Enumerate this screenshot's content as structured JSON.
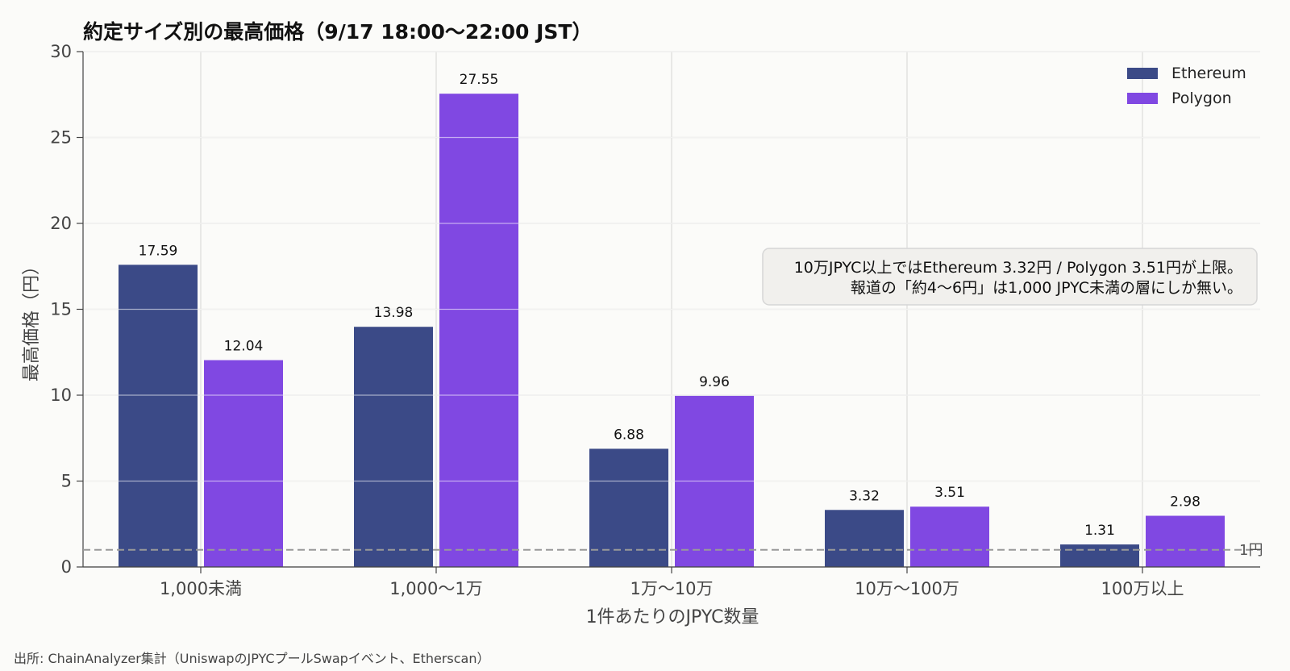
{
  "chart_data": {
    "type": "bar",
    "title": "約定サイズ別の最高価格（9/17 18:00〜22:00 JST）",
    "xlabel": "1件あたりのJPYC数量",
    "ylabel": "最高価格（円）",
    "categories": [
      "1,000未満",
      "1,000〜1万",
      "1万〜10万",
      "10万〜100万",
      "100万以上"
    ],
    "series": [
      {
        "name": "Ethereum",
        "color": "#3b4a87",
        "values": [
          17.59,
          13.98,
          6.88,
          3.32,
          1.31
        ]
      },
      {
        "name": "Polygon",
        "color": "#8048e2",
        "values": [
          12.04,
          27.55,
          9.96,
          3.51,
          2.98
        ]
      }
    ],
    "ylim": [
      0,
      30
    ],
    "yticks": [
      0,
      5,
      10,
      15,
      20,
      25,
      30
    ],
    "grid": true,
    "legend_position": "top-right",
    "reference_line": {
      "value": 1,
      "label": "1円",
      "color": "#999999"
    },
    "annotation": [
      "10万JPYC以上ではEthereum 3.32円 / Polygon 3.51円が上限。",
      "報道の「約4〜6円」は1,000 JPYC未満の層にしか無い。"
    ]
  },
  "footer": {
    "source": "出所: ChainAnalyzer集計（UniswapのJPYCプールSwapイベント、Etherscan）"
  }
}
